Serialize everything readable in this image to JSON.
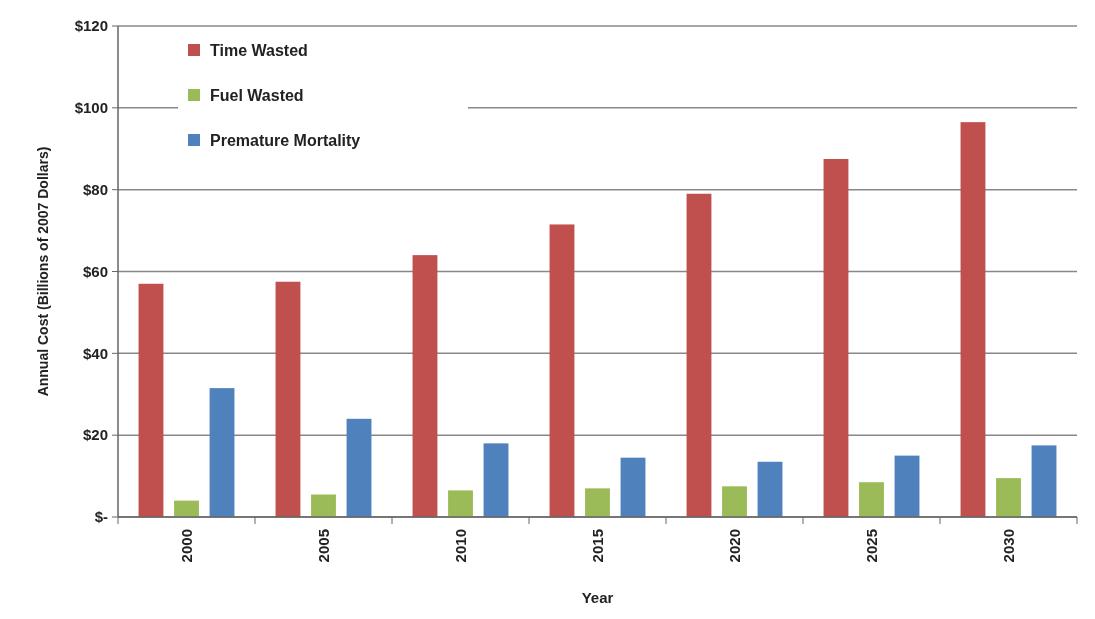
{
  "chart_data": {
    "type": "bar",
    "xlabel": "Year",
    "ylabel": "Annual Cost (Billions of 2007 Dollars)",
    "categories": [
      "2000",
      "2005",
      "2010",
      "2015",
      "2020",
      "2025",
      "2030"
    ],
    "series": [
      {
        "name": "Time Wasted",
        "color": "#c0504d",
        "values": [
          57,
          57.5,
          64,
          71.5,
          79,
          87.5,
          96.5
        ]
      },
      {
        "name": "Fuel Wasted",
        "color": "#9bbb59",
        "values": [
          4,
          5.5,
          6.5,
          7,
          7.5,
          8.5,
          9.5
        ]
      },
      {
        "name": "Premature Mortality",
        "color": "#4f81bd",
        "values": [
          31.5,
          24,
          18,
          14.5,
          13.5,
          15,
          17.5
        ]
      }
    ],
    "ylim": [
      0,
      120
    ],
    "yticks": [
      {
        "value": 0,
        "label": "$-"
      },
      {
        "value": 20,
        "label": "$20"
      },
      {
        "value": 40,
        "label": "$40"
      },
      {
        "value": 60,
        "label": "$60"
      },
      {
        "value": 80,
        "label": "$80"
      },
      {
        "value": 100,
        "label": "$100"
      },
      {
        "value": 120,
        "label": "$120"
      }
    ],
    "grid": "y",
    "legend": "top left"
  }
}
